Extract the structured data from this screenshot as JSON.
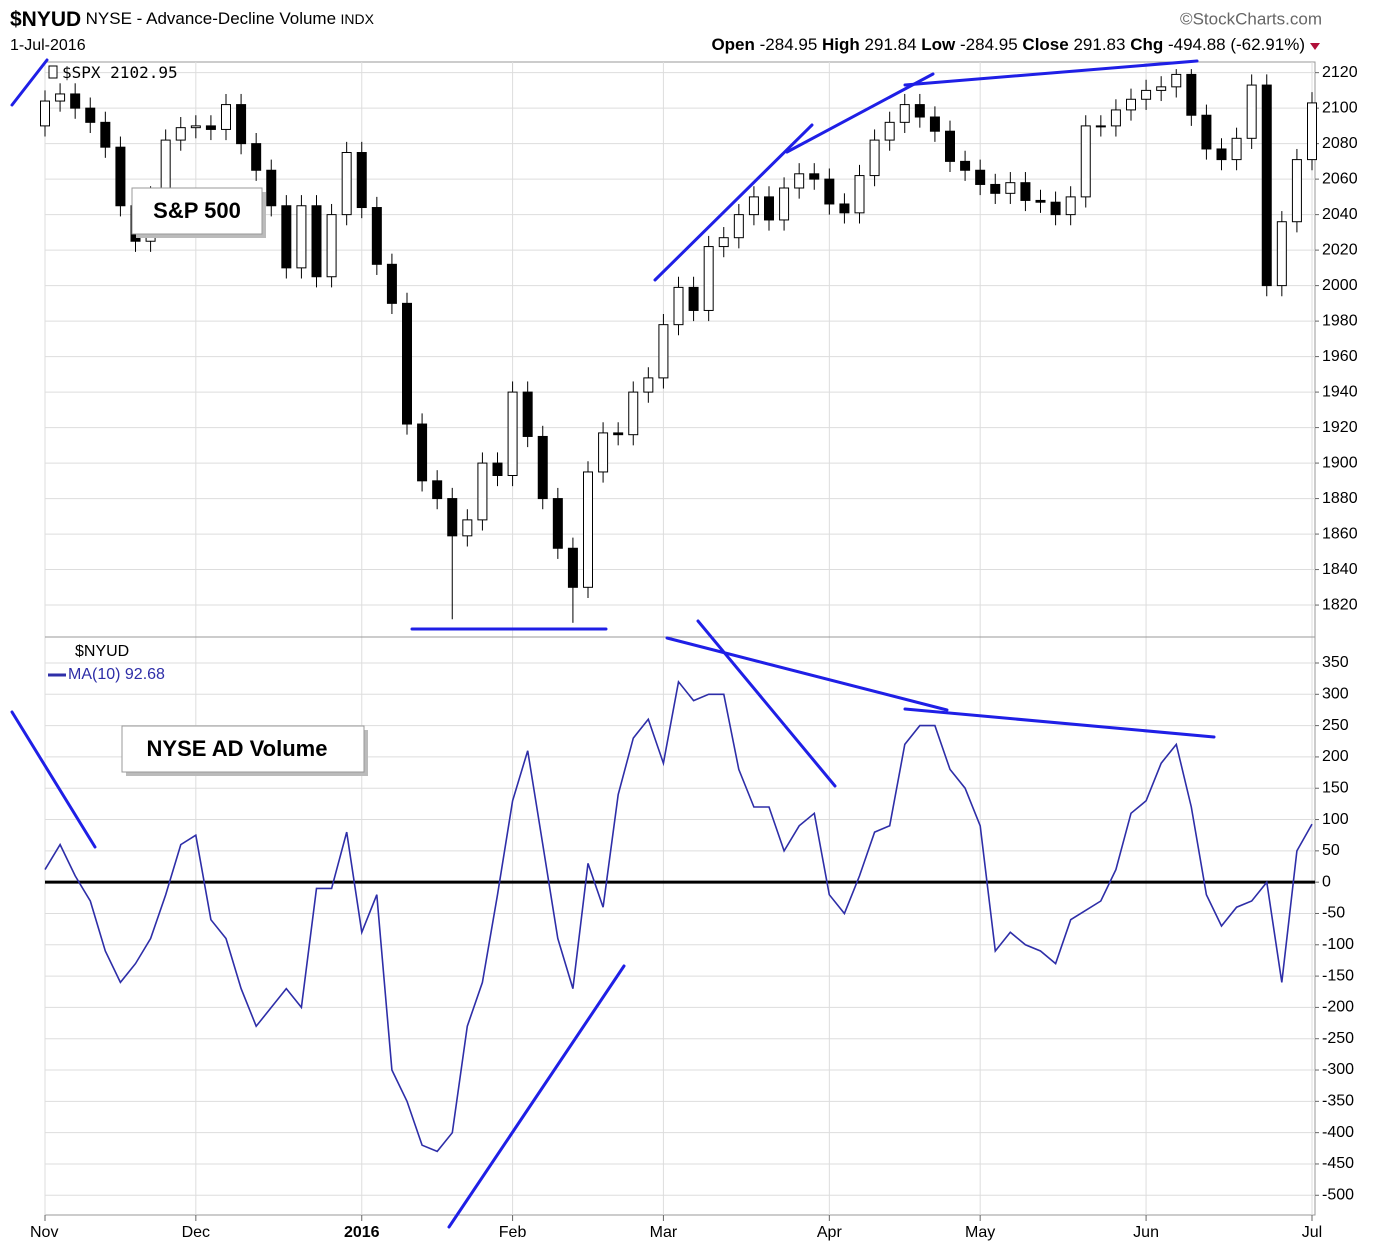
{
  "header": {
    "symbol": "$NYUD",
    "name": "NYSE - Advance-Decline Volume",
    "exchange": "INDX",
    "source": "©StockCharts.com",
    "date": "1-Jul-2016",
    "open_label": "Open",
    "open": -284.95,
    "high_label": "High",
    "high": 291.84,
    "low_label": "Low",
    "low": -284.95,
    "close_label": "Close",
    "close": 291.83,
    "chg_label": "Chg",
    "chg": "-494.88 (-62.91%)"
  },
  "chart_data": [
    {
      "type": "candlestick",
      "annotation": "S&P 500",
      "ylim": [
        1802,
        2126
      ],
      "yticks": [
        1820,
        1840,
        1860,
        1880,
        1900,
        1920,
        1940,
        1960,
        1980,
        2000,
        2020,
        2040,
        2060,
        2080,
        2100,
        2120
      ],
      "grid": true,
      "up_color": "#ffffff",
      "down_color": "#000000",
      "series": [
        {
          "name": "$SPX",
          "open": [
            2090,
            2104,
            2108,
            2100,
            2092,
            2078,
            2045,
            2025,
            2050,
            2082,
            2089,
            2090,
            2088,
            2102,
            2080,
            2065,
            2045,
            2010,
            2045,
            2005,
            2040,
            2075,
            2044,
            2012,
            1990,
            1922,
            1890,
            1880,
            1859,
            1868,
            1900,
            1893,
            1940,
            1915,
            1880,
            1852,
            1830,
            1895,
            1917,
            1916,
            1940,
            1948,
            1978,
            1999,
            1986,
            2022,
            2027,
            2040,
            2050,
            2037,
            2055,
            2063,
            2060,
            2046,
            2041,
            2062,
            2082,
            2092,
            2102,
            2095,
            2087,
            2070,
            2065,
            2057,
            2052,
            2058,
            2048,
            2047,
            2040,
            2050,
            2090,
            2090,
            2099,
            2105,
            2110,
            2112,
            2119,
            2096,
            2077,
            2071,
            2083,
            2113,
            2000,
            2036,
            2071
          ],
          "high": [
            2110,
            2114,
            2114,
            2106,
            2098,
            2084,
            2051,
            2056,
            2088,
            2095,
            2096,
            2096,
            2108,
            2108,
            2086,
            2071,
            2051,
            2051,
            2051,
            2046,
            2081,
            2081,
            2050,
            2018,
            1996,
            1928,
            1896,
            1886,
            1874,
            1906,
            1906,
            1946,
            1946,
            1921,
            1886,
            1858,
            1901,
            1923,
            1923,
            1946,
            1954,
            1984,
            2005,
            2005,
            2028,
            2033,
            2046,
            2056,
            2056,
            2061,
            2069,
            2069,
            2066,
            2052,
            2068,
            2088,
            2098,
            2108,
            2108,
            2101,
            2093,
            2076,
            2071,
            2063,
            2064,
            2064,
            2054,
            2053,
            2056,
            2096,
            2096,
            2105,
            2111,
            2116,
            2118,
            2122,
            2122,
            2102,
            2083,
            2089,
            2119,
            2119,
            2042,
            2077,
            2109
          ],
          "low": [
            2084,
            2098,
            2094,
            2086,
            2072,
            2039,
            2019,
            2019,
            2044,
            2076,
            2083,
            2082,
            2082,
            2074,
            2059,
            2039,
            2004,
            2004,
            1999,
            1999,
            2034,
            2038,
            2006,
            1984,
            1916,
            1884,
            1874,
            1812,
            1853,
            1862,
            1887,
            1887,
            1909,
            1874,
            1846,
            1810,
            1824,
            1889,
            1910,
            1910,
            1934,
            1942,
            1972,
            1980,
            1980,
            2016,
            2021,
            2034,
            2031,
            2031,
            2049,
            2054,
            2040,
            2035,
            2035,
            2056,
            2076,
            2086,
            2089,
            2081,
            2064,
            2059,
            2051,
            2046,
            2046,
            2042,
            2041,
            2034,
            2034,
            2044,
            2084,
            2084,
            2093,
            2099,
            2104,
            2106,
            2090,
            2071,
            2065,
            2065,
            2077,
            1994,
            1994,
            2030,
            2065
          ],
          "close": [
            2104,
            2108,
            2100,
            2092,
            2078,
            2045,
            2025,
            2050,
            2082,
            2089,
            2090,
            2088,
            2102,
            2080,
            2065,
            2045,
            2010,
            2045,
            2005,
            2040,
            2075,
            2044,
            2012,
            1990,
            1922,
            1890,
            1880,
            1859,
            1868,
            1900,
            1893,
            1940,
            1915,
            1880,
            1852,
            1830,
            1895,
            1917,
            1916,
            1940,
            1948,
            1978,
            1999,
            1986,
            2022,
            2027,
            2040,
            2050,
            2037,
            2055,
            2063,
            2060,
            2046,
            2041,
            2062,
            2082,
            2092,
            2102,
            2095,
            2087,
            2070,
            2065,
            2057,
            2052,
            2058,
            2048,
            2047,
            2040,
            2050,
            2090,
            2090,
            2099,
            2105,
            2110,
            2112,
            2119,
            2096,
            2077,
            2071,
            2083,
            2113,
            2000,
            2036,
            2071,
            2102.95
          ]
        }
      ]
    },
    {
      "type": "line",
      "annotation": "NYSE AD Volume",
      "symbol": "$NYUD",
      "categories": [
        "Nov",
        null,
        null,
        null,
        null,
        null,
        null,
        null,
        null,
        null,
        "Dec",
        null,
        null,
        null,
        null,
        null,
        null,
        null,
        null,
        null,
        null,
        "2016",
        null,
        null,
        null,
        null,
        null,
        null,
        null,
        null,
        null,
        "Feb",
        null,
        null,
        null,
        null,
        null,
        null,
        null,
        null,
        null,
        "Mar",
        null,
        null,
        null,
        null,
        null,
        null,
        null,
        null,
        null,
        null,
        "Apr",
        null,
        null,
        null,
        null,
        null,
        null,
        null,
        null,
        null,
        "May",
        null,
        null,
        null,
        null,
        null,
        null,
        null,
        null,
        null,
        null,
        "Jun",
        null,
        null,
        null,
        null,
        null,
        null,
        null,
        null,
        null,
        null,
        "Jul"
      ],
      "ylim": [
        -531.5,
        391.5
      ],
      "yticks": [
        -500,
        -450,
        -400,
        -350,
        -300,
        -250,
        -200,
        -150,
        -100,
        -50,
        0,
        50,
        100,
        150,
        200,
        250,
        300,
        350
      ],
      "grid": true,
      "reference_line": 0,
      "series": [
        {
          "name": "MA(10)",
          "color": "#2e2ea8",
          "values": [
            20,
            60,
            10,
            -30,
            -110,
            -160,
            -130,
            -90,
            -20,
            60,
            75,
            -60,
            -90,
            -170,
            -230,
            -200,
            -170,
            -200,
            -10,
            -10,
            80,
            -80,
            -20,
            -300,
            -350,
            -420,
            -430,
            -400,
            -230,
            -160,
            -20,
            130,
            210,
            60,
            -90,
            -170,
            30,
            -40,
            140,
            230,
            260,
            190,
            320,
            290,
            300,
            300,
            180,
            120,
            120,
            50,
            90,
            110,
            -20,
            -50,
            10,
            80,
            90,
            220,
            250,
            250,
            180,
            150,
            90,
            -110,
            -80,
            -100,
            -110,
            -130,
            -60,
            -45,
            -30,
            20,
            110,
            130,
            190,
            220,
            120,
            -20,
            -70,
            -40,
            -30,
            0,
            -160,
            50,
            92.68
          ]
        }
      ]
    }
  ]
}
